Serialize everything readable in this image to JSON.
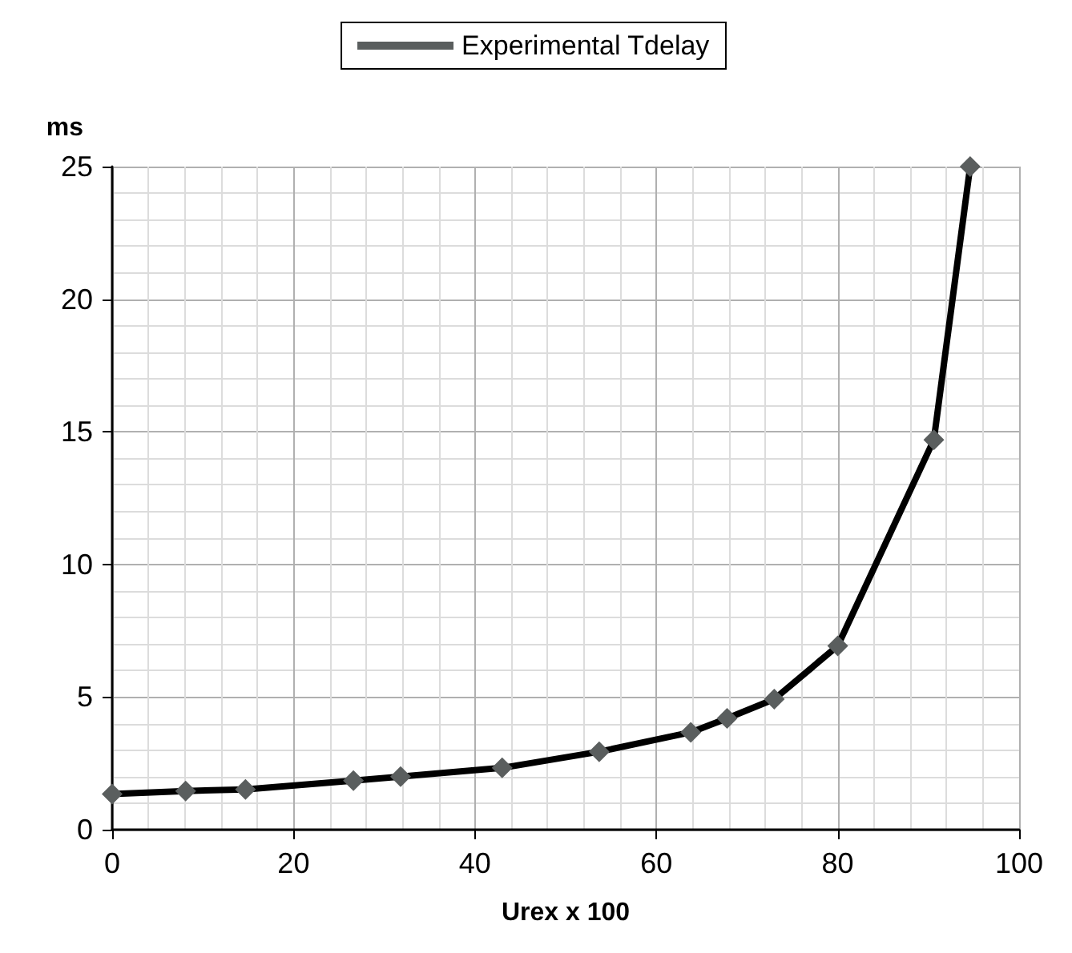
{
  "chart_data": {
    "type": "line",
    "xlabel": "Urex x 100",
    "ylabel": "ms",
    "series": [
      {
        "name": "Experimental Tdelay",
        "color": "#000000",
        "x": [
          0,
          8.1,
          14.7,
          26.6,
          31.8,
          43,
          53.7,
          63.8,
          67.8,
          73,
          80,
          90.6,
          94.6
        ],
        "values": [
          1.34,
          1.46,
          1.52,
          1.85,
          2.0,
          2.33,
          2.94,
          3.67,
          4.2,
          4.92,
          6.93,
          14.7,
          25
        ]
      }
    ],
    "xlim": [
      0,
      100
    ],
    "xticks": [
      0,
      20,
      40,
      60,
      80,
      100
    ],
    "ylim": [
      0,
      25
    ],
    "yticks": [
      0,
      5,
      10,
      15,
      20,
      25
    ],
    "grid": true,
    "legend": "top",
    "marker": "diamond",
    "line_style": "solid"
  }
}
